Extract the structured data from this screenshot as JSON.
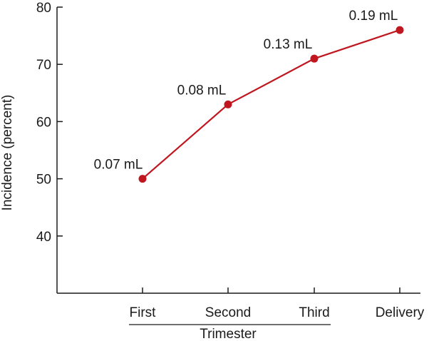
{
  "chart_data": {
    "type": "line",
    "categories": [
      "First",
      "Second",
      "Third",
      "Delivery"
    ],
    "values": [
      50,
      63,
      71,
      76
    ],
    "point_labels": [
      "0.07 mL",
      "0.08 mL",
      "0.13 mL",
      "0.19 mL"
    ],
    "ylabel": "Incidence (percent)",
    "xlabel": "Trimester",
    "xlabel_group": [
      "First",
      "Second",
      "Third"
    ],
    "ylim": [
      30,
      80
    ],
    "yticks": [
      40,
      50,
      60,
      70,
      80
    ],
    "grid": false,
    "legend": "none",
    "line_color": "#c0161f",
    "marker_color": "#c0161f"
  }
}
